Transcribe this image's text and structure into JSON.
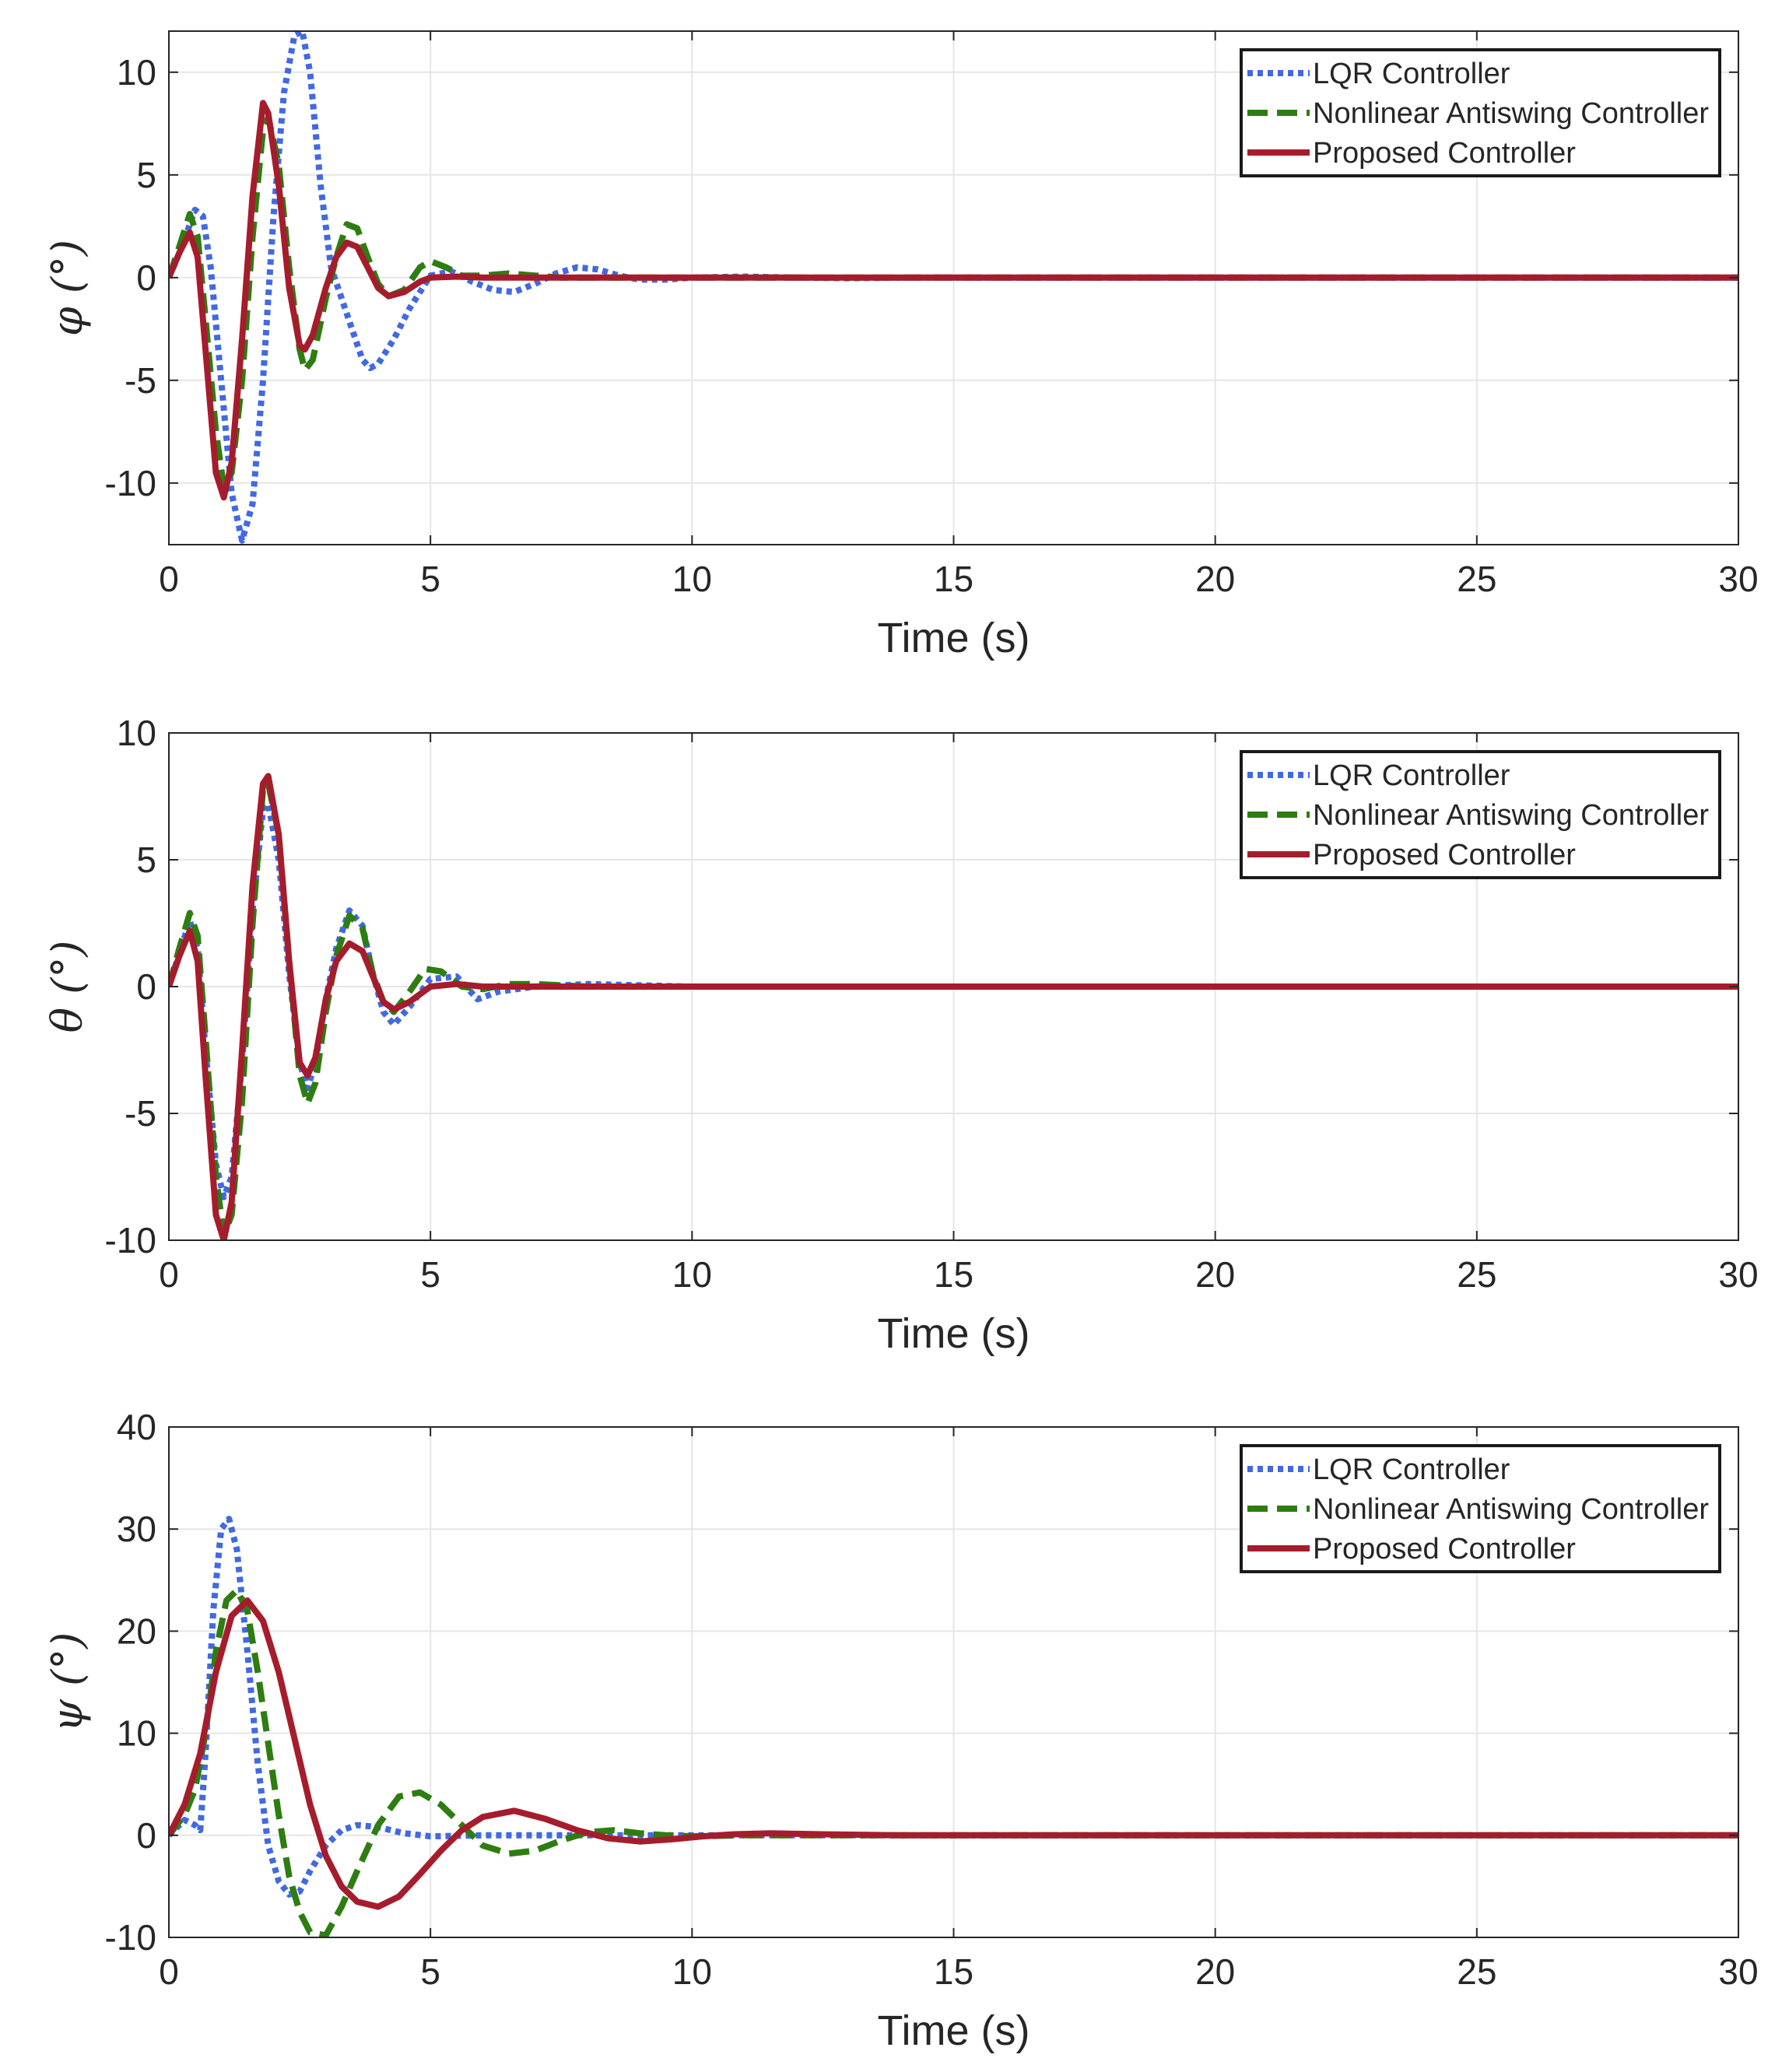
{
  "chart_data": [
    {
      "type": "line",
      "ylabel": "φ (°)",
      "xlabel": "Time (s)",
      "xlim": [
        0,
        30
      ],
      "ylim": [
        -13,
        12
      ],
      "xticks": [
        0,
        5,
        10,
        15,
        20,
        25,
        30
      ],
      "yticks": [
        -10,
        -5,
        0,
        5,
        10
      ],
      "xtick_labels": [
        "0",
        "5",
        "10",
        "15",
        "20",
        "25",
        "30"
      ],
      "ytick_labels": [
        "-10",
        "-5",
        "0",
        "5",
        "10"
      ],
      "grid": true,
      "legend_position": "top-right",
      "series": [
        {
          "name": "LQR Controller",
          "color": "#4169E1",
          "style": "dotted",
          "x": [
            0,
            0.25,
            0.5,
            0.65,
            0.8,
            1.0,
            1.2,
            1.4,
            1.6,
            1.8,
            2.0,
            2.2,
            2.4,
            2.55,
            2.7,
            2.9,
            3.1,
            3.3,
            3.5,
            3.7,
            3.85,
            4.0,
            4.3,
            4.6,
            5.0,
            5.4,
            5.8,
            6.2,
            6.6,
            7.0,
            7.4,
            7.8,
            8.2,
            8.6,
            9.0,
            9.5,
            10,
            11,
            12,
            13,
            14,
            30
          ],
          "y": [
            0,
            1.5,
            3.3,
            3.0,
            0.5,
            -5.0,
            -10.5,
            -12.8,
            -11.0,
            -5.0,
            3.0,
            9.0,
            11.8,
            12.0,
            10.0,
            4.5,
            0.5,
            -1.0,
            -2.5,
            -4.0,
            -4.4,
            -4.2,
            -3.0,
            -1.5,
            0.1,
            0.3,
            -0.2,
            -0.6,
            -0.7,
            -0.3,
            0.2,
            0.5,
            0.4,
            0.1,
            -0.1,
            -0.1,
            0,
            0.05,
            0,
            -0.03,
            0,
            0
          ]
        },
        {
          "name": "Nonlinear Antiswing Controller",
          "color": "#2E7D11",
          "style": "dashed",
          "x": [
            0,
            0.2,
            0.4,
            0.55,
            0.7,
            0.9,
            1.05,
            1.2,
            1.4,
            1.6,
            1.8,
            1.9,
            2.1,
            2.3,
            2.5,
            2.6,
            2.75,
            3.0,
            3.2,
            3.4,
            3.6,
            3.8,
            4.0,
            4.2,
            4.5,
            4.8,
            5.0,
            5.3,
            5.6,
            6.0,
            6.5,
            7.0,
            7.5,
            8.0,
            9.0,
            10,
            12,
            30
          ],
          "y": [
            0,
            1.5,
            3.1,
            2.0,
            -2.0,
            -7.5,
            -10.2,
            -9.5,
            -5.0,
            2.0,
            7.2,
            7.8,
            5.5,
            0.5,
            -3.5,
            -4.5,
            -4.0,
            -1.0,
            1.0,
            2.6,
            2.4,
            1.0,
            -0.3,
            -0.9,
            -0.6,
            0.5,
            0.8,
            0.5,
            0.1,
            0.1,
            0.2,
            0.1,
            0,
            0,
            0,
            0,
            0,
            0
          ]
        },
        {
          "name": "Proposed Controller",
          "color": "#A51D2D",
          "style": "solid",
          "x": [
            0,
            0.2,
            0.4,
            0.55,
            0.7,
            0.9,
            1.05,
            1.2,
            1.4,
            1.6,
            1.8,
            1.9,
            2.1,
            2.3,
            2.5,
            2.6,
            2.75,
            3.0,
            3.2,
            3.4,
            3.6,
            3.8,
            4.0,
            4.2,
            4.5,
            4.8,
            5.0,
            5.5,
            6.0,
            7.0,
            30
          ],
          "y": [
            0,
            1.2,
            2.2,
            1.0,
            -3.5,
            -9.5,
            -10.7,
            -9.0,
            -3.0,
            4.0,
            8.5,
            8.0,
            4.5,
            -0.5,
            -3.3,
            -3.5,
            -2.8,
            -0.5,
            1.0,
            1.7,
            1.5,
            0.5,
            -0.5,
            -0.9,
            -0.7,
            -0.2,
            0,
            0.05,
            0,
            0,
            0
          ]
        }
      ]
    },
    {
      "type": "line",
      "ylabel": "θ (°)",
      "xlabel": "Time (s)",
      "xlim": [
        0,
        30
      ],
      "ylim": [
        -10,
        10
      ],
      "xticks": [
        0,
        5,
        10,
        15,
        20,
        25,
        30
      ],
      "yticks": [
        -10,
        -5,
        0,
        5,
        10
      ],
      "xtick_labels": [
        "0",
        "5",
        "10",
        "15",
        "20",
        "25",
        "30"
      ],
      "ytick_labels": [
        "-10",
        "-5",
        "0",
        "5",
        "10"
      ],
      "grid": true,
      "legend_position": "top-right",
      "series": [
        {
          "name": "LQR Controller",
          "color": "#4169E1",
          "style": "dotted",
          "x": [
            0,
            0.2,
            0.4,
            0.55,
            0.7,
            0.9,
            1.05,
            1.2,
            1.4,
            1.6,
            1.8,
            1.9,
            2.1,
            2.3,
            2.5,
            2.65,
            2.8,
            3.0,
            3.2,
            3.45,
            3.7,
            3.9,
            4.1,
            4.3,
            4.6,
            5.0,
            5.5,
            5.9,
            6.3,
            7.0,
            8.0,
            10,
            12,
            30
          ],
          "y": [
            0,
            1.3,
            2.6,
            1.5,
            -2.5,
            -7.0,
            -8.3,
            -7.5,
            -3.0,
            3.0,
            7.0,
            7.2,
            5.0,
            0.5,
            -3.0,
            -4.0,
            -3.0,
            -0.5,
            1.5,
            3.0,
            2.4,
            0.5,
            -1.0,
            -1.5,
            -0.8,
            0.3,
            0.4,
            -0.5,
            -0.2,
            0,
            0.1,
            0,
            0,
            0
          ]
        },
        {
          "name": "Nonlinear Antiswing Controller",
          "color": "#2E7D11",
          "style": "dashed",
          "x": [
            0,
            0.2,
            0.4,
            0.55,
            0.7,
            0.9,
            1.05,
            1.2,
            1.4,
            1.6,
            1.8,
            1.9,
            2.1,
            2.3,
            2.5,
            2.65,
            2.8,
            3.0,
            3.2,
            3.45,
            3.7,
            3.9,
            4.1,
            4.3,
            4.6,
            4.9,
            5.2,
            5.6,
            6.0,
            6.5,
            7.0,
            8.0,
            10,
            12,
            30
          ],
          "y": [
            0,
            1.5,
            2.9,
            2.0,
            -2.0,
            -7.5,
            -9.8,
            -9.0,
            -4.5,
            2.5,
            7.8,
            8.0,
            6.0,
            1.0,
            -3.5,
            -4.6,
            -3.8,
            -1.0,
            1.2,
            2.8,
            2.3,
            0.5,
            -0.6,
            -1.0,
            -0.2,
            0.7,
            0.6,
            0,
            -0.1,
            0.1,
            0.1,
            0,
            0,
            0,
            0
          ]
        },
        {
          "name": "Proposed Controller",
          "color": "#A51D2D",
          "style": "solid",
          "x": [
            0,
            0.2,
            0.4,
            0.55,
            0.7,
            0.9,
            1.05,
            1.2,
            1.4,
            1.6,
            1.8,
            1.9,
            2.1,
            2.3,
            2.5,
            2.65,
            2.8,
            3.0,
            3.2,
            3.45,
            3.7,
            3.9,
            4.1,
            4.3,
            4.6,
            5.0,
            5.5,
            6.0,
            7.0,
            30
          ],
          "y": [
            0,
            1.2,
            2.2,
            1.0,
            -3.5,
            -9.0,
            -10.0,
            -8.5,
            -2.5,
            4.0,
            8.0,
            8.3,
            6.0,
            1.0,
            -3.0,
            -3.5,
            -2.8,
            -0.5,
            1.0,
            1.7,
            1.4,
            0.4,
            -0.6,
            -0.9,
            -0.6,
            0,
            0.1,
            0,
            0,
            0
          ]
        }
      ]
    },
    {
      "type": "line",
      "ylabel": "ψ (°)",
      "xlabel": "Time (s)",
      "xlim": [
        0,
        30
      ],
      "ylim": [
        -10,
        40
      ],
      "xticks": [
        0,
        5,
        10,
        15,
        20,
        25,
        30
      ],
      "yticks": [
        -10,
        0,
        10,
        20,
        30,
        40
      ],
      "xtick_labels": [
        "0",
        "5",
        "10",
        "15",
        "20",
        "25",
        "30"
      ],
      "ytick_labels": [
        "-10",
        "0",
        "10",
        "20",
        "30",
        "40"
      ],
      "grid": true,
      "legend_position": "top-right",
      "series": [
        {
          "name": "LQR Controller",
          "color": "#4169E1",
          "style": "dotted",
          "x": [
            0,
            0.3,
            0.5,
            0.6,
            0.7,
            0.85,
            1.0,
            1.15,
            1.3,
            1.5,
            1.7,
            1.9,
            2.1,
            2.3,
            2.5,
            2.7,
            3.0,
            3.3,
            3.6,
            4.0,
            4.5,
            5.0,
            6.0,
            7.0,
            8.0,
            9.0,
            10,
            12,
            14,
            30
          ],
          "y": [
            0,
            1.5,
            1.0,
            0.5,
            8.0,
            22.0,
            30.0,
            31.0,
            28.0,
            18.0,
            7.0,
            -1.0,
            -4.5,
            -5.8,
            -5.5,
            -3.5,
            -1.0,
            0.5,
            1.0,
            0.8,
            0.2,
            -0.1,
            0,
            0,
            0,
            0,
            0,
            0,
            0,
            0
          ]
        },
        {
          "name": "Nonlinear Antiswing Controller",
          "color": "#2E7D11",
          "style": "dashed",
          "x": [
            0,
            0.3,
            0.5,
            0.7,
            0.9,
            1.1,
            1.3,
            1.5,
            1.7,
            1.9,
            2.1,
            2.3,
            2.5,
            2.7,
            3.0,
            3.3,
            3.6,
            4.0,
            4.4,
            4.8,
            5.2,
            5.6,
            6.0,
            6.5,
            7.0,
            7.5,
            8.0,
            8.5,
            9.0,
            9.5,
            10,
            11,
            12,
            14,
            30
          ],
          "y": [
            0,
            2.0,
            4.5,
            10.0,
            18.0,
            23.0,
            24.0,
            22.0,
            16.0,
            9.0,
            2.0,
            -4.0,
            -7.5,
            -9.5,
            -9.8,
            -7.0,
            -3.5,
            1.0,
            3.8,
            4.2,
            3.0,
            1.0,
            -1.0,
            -1.8,
            -1.5,
            -0.5,
            0.3,
            0.5,
            0.2,
            0,
            -0.1,
            0,
            0,
            0,
            0
          ]
        },
        {
          "name": "Proposed Controller",
          "color": "#A51D2D",
          "style": "solid",
          "x": [
            0,
            0.3,
            0.6,
            0.9,
            1.2,
            1.5,
            1.8,
            2.1,
            2.4,
            2.7,
            3.0,
            3.3,
            3.6,
            4.0,
            4.4,
            4.8,
            5.2,
            5.6,
            6.0,
            6.6,
            7.2,
            7.8,
            8.4,
            9.0,
            9.6,
            10.2,
            10.8,
            11.5,
            12.5,
            14,
            16,
            30
          ],
          "y": [
            0,
            3.0,
            8.0,
            16.0,
            21.5,
            23.0,
            21.0,
            16.0,
            9.5,
            3.0,
            -2.0,
            -5.0,
            -6.5,
            -7.0,
            -6.0,
            -3.8,
            -1.5,
            0.5,
            1.8,
            2.4,
            1.6,
            0.5,
            -0.3,
            -0.6,
            -0.4,
            -0.1,
            0.1,
            0.2,
            0.1,
            0,
            0,
            0
          ]
        }
      ]
    }
  ]
}
